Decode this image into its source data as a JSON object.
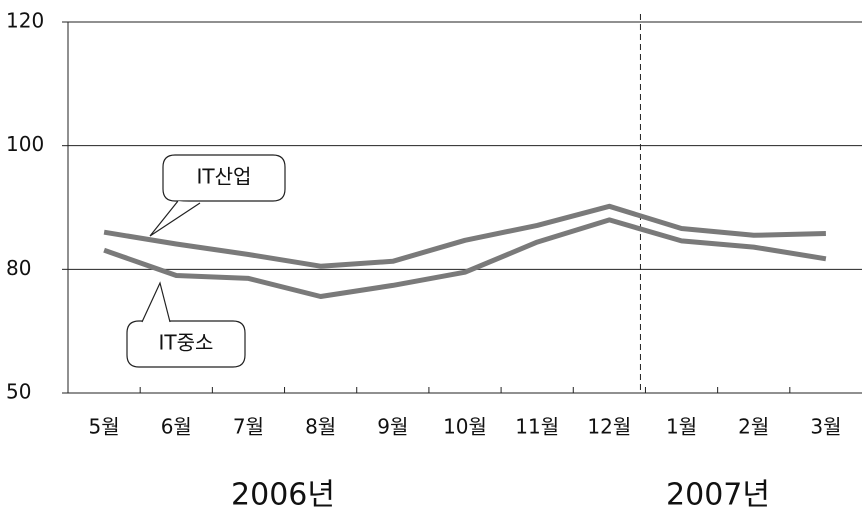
{
  "chart_data": {
    "type": "line",
    "categories": [
      "5월",
      "6월",
      "7월",
      "8월",
      "9월",
      "10월",
      "11월",
      "12월",
      "1월",
      "2월",
      "3월"
    ],
    "series": [
      {
        "name": "IT산업",
        "color": "#7a7a7a",
        "values": [
          86.0,
          84.1,
          82.4,
          80.5,
          81.3,
          84.7,
          87.1,
          90.2,
          86.6,
          85.5,
          85.8
        ]
      },
      {
        "name": "IT중소",
        "color": "#7a7a7a",
        "values": [
          83.1,
          78.5,
          77.8,
          73.4,
          76.1,
          79.3,
          84.4,
          88.0,
          84.6,
          83.6,
          81.7
        ]
      }
    ],
    "ylim": [
      50,
      120
    ],
    "yticks": [
      50,
      80,
      100,
      120
    ],
    "annotations": [
      "2006년",
      "2007년"
    ]
  }
}
